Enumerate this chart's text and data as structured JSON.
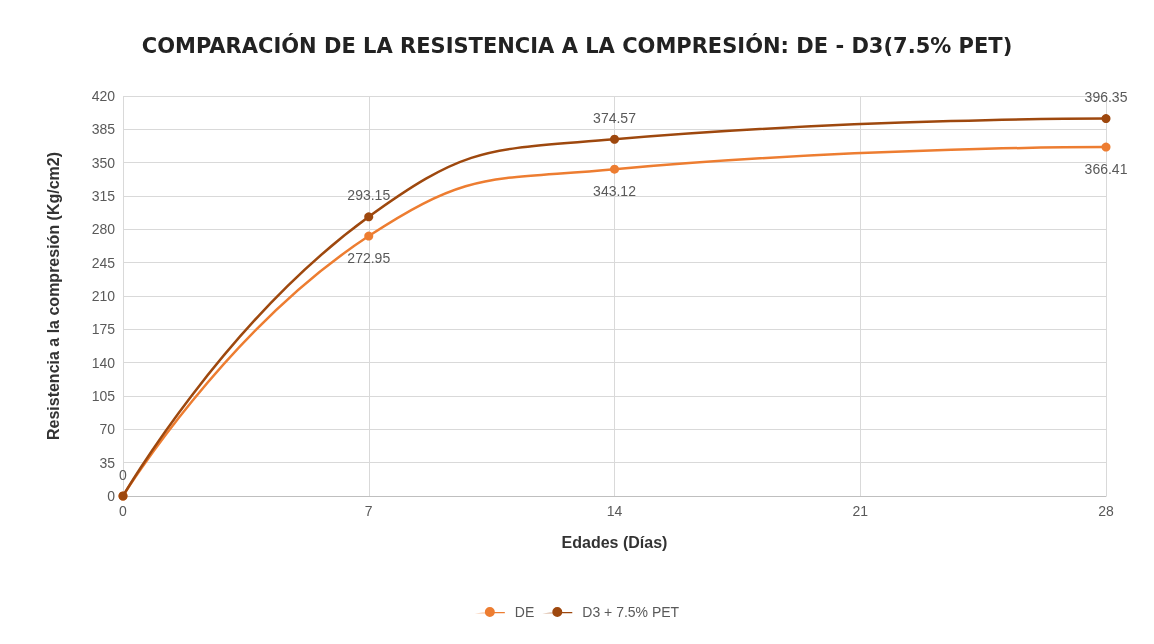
{
  "chart_data": {
    "type": "line",
    "title": "COMPARACIÓN DE LA RESISTENCIA A LA COMPRESIÓN: DE - D3(7.5% PET)",
    "xlabel": "Edades (Días)",
    "ylabel": "Resistencia a la compresión (Kg/cm2)",
    "x": [
      0,
      7,
      14,
      28
    ],
    "series": [
      {
        "name": "DE",
        "color": "#ed7d31",
        "values": [
          0,
          272.95,
          343.12,
          366.41
        ],
        "value_labels": [
          null,
          "272.95",
          "343.12",
          "366.41"
        ]
      },
      {
        "name": "D3 + 7.5% PET",
        "color": "#9e480e",
        "values": [
          0,
          293.15,
          374.57,
          396.35
        ],
        "value_labels": [
          "0",
          "293.15",
          "374.57",
          "396.35"
        ]
      }
    ],
    "xlim": [
      0,
      28
    ],
    "xticks": [
      0,
      7,
      14,
      21,
      28
    ],
    "ylim": [
      0,
      420
    ],
    "yticks": [
      0,
      35,
      70,
      105,
      140,
      175,
      210,
      245,
      280,
      315,
      350,
      385,
      420
    ],
    "grid": true,
    "legend": "bottom",
    "marker": "circle",
    "line_style": "solid"
  }
}
